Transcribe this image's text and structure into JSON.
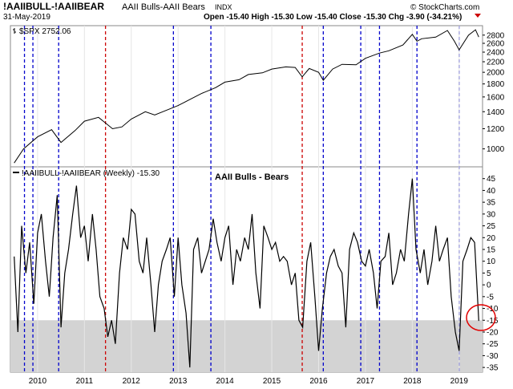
{
  "header": {
    "symbol": "!AAIIBULL-!AAIIBEAR",
    "description": "AAII Bulls-AAII Bears",
    "exchange": "INDX",
    "date": "31-May-2019",
    "ohlc": "Open -15.40   High -15.30   Low -15.40   Close -15.30   Chg -3.90 (-34.21%)",
    "credit": "© StockCharts.com",
    "arrow_icon": "down-triangle-icon"
  },
  "upper_panel": {
    "legend": "$SPX 2752.06",
    "legend_icon": "price-bars-icon"
  },
  "lower_panel": {
    "legend": "!AAIIBULL-!AAIIBEAR (Weekly) -15.30",
    "annotation": "AAII Bulls - Bears",
    "shaded_zone_label": ""
  },
  "colors": {
    "red_line": "#cc0000",
    "blue_line": "#0000cc",
    "shade": "#d3d3d3",
    "circle": "#e00000",
    "series": "#000000"
  },
  "chart_data": [
    {
      "type": "line",
      "name": "upper",
      "series": [
        {
          "name": "$SPX",
          "x": [
            2009.5,
            2009.7,
            2010.0,
            2010.3,
            2010.5,
            2010.8,
            2011.0,
            2011.3,
            2011.6,
            2011.8,
            2012.0,
            2012.3,
            2012.5,
            2012.8,
            2013.0,
            2013.3,
            2013.5,
            2013.8,
            2014.0,
            2014.3,
            2014.5,
            2014.8,
            2015.0,
            2015.3,
            2015.5,
            2015.65,
            2015.8,
            2016.0,
            2016.1,
            2016.3,
            2016.5,
            2016.8,
            2017.0,
            2017.3,
            2017.5,
            2017.8,
            2018.0,
            2018.1,
            2018.2,
            2018.5,
            2018.75,
            2018.9,
            2019.0,
            2019.2,
            2019.35,
            2019.42
          ],
          "values": [
            880,
            1000,
            1115,
            1190,
            1060,
            1180,
            1285,
            1330,
            1200,
            1220,
            1310,
            1400,
            1360,
            1430,
            1480,
            1580,
            1650,
            1740,
            1830,
            1870,
            1960,
            1990,
            2060,
            2100,
            2090,
            1920,
            2070,
            2000,
            1860,
            2060,
            2150,
            2140,
            2270,
            2380,
            2430,
            2560,
            2820,
            2650,
            2710,
            2750,
            2920,
            2650,
            2450,
            2800,
            2940,
            2752
          ]
        }
      ],
      "y_ticks": [
        1000,
        1200,
        1400,
        1600,
        1800,
        2000,
        2200,
        2400,
        2600,
        2800
      ],
      "y_scale": "log"
    },
    {
      "type": "line",
      "name": "lower",
      "series": [
        {
          "name": "AAII Bulls - Bears",
          "x": [
            2009.5,
            2009.58,
            2009.66,
            2009.75,
            2009.83,
            2009.92,
            2010.0,
            2010.08,
            2010.17,
            2010.25,
            2010.33,
            2010.42,
            2010.5,
            2010.58,
            2010.66,
            2010.75,
            2010.83,
            2010.92,
            2011.0,
            2011.08,
            2011.17,
            2011.25,
            2011.33,
            2011.42,
            2011.5,
            2011.58,
            2011.66,
            2011.75,
            2011.83,
            2011.92,
            2012.0,
            2012.08,
            2012.17,
            2012.25,
            2012.33,
            2012.42,
            2012.5,
            2012.58,
            2012.66,
            2012.75,
            2012.83,
            2012.92,
            2013.0,
            2013.08,
            2013.17,
            2013.25,
            2013.33,
            2013.42,
            2013.5,
            2013.58,
            2013.66,
            2013.75,
            2013.83,
            2013.92,
            2014.0,
            2014.08,
            2014.17,
            2014.25,
            2014.33,
            2014.42,
            2014.5,
            2014.58,
            2014.66,
            2014.75,
            2014.83,
            2014.92,
            2015.0,
            2015.08,
            2015.17,
            2015.25,
            2015.33,
            2015.42,
            2015.5,
            2015.58,
            2015.66,
            2015.75,
            2015.83,
            2015.92,
            2016.0,
            2016.08,
            2016.17,
            2016.25,
            2016.33,
            2016.42,
            2016.5,
            2016.58,
            2016.66,
            2016.75,
            2016.83,
            2016.92,
            2017.0,
            2017.08,
            2017.17,
            2017.25,
            2017.33,
            2017.42,
            2017.5,
            2017.58,
            2017.66,
            2017.75,
            2017.83,
            2017.92,
            2018.0,
            2018.08,
            2018.17,
            2018.25,
            2018.33,
            2018.42,
            2018.5,
            2018.58,
            2018.66,
            2018.75,
            2018.83,
            2018.92,
            2019.0,
            2019.08,
            2019.17,
            2019.25,
            2019.33,
            2019.42
          ],
          "values": [
            12,
            -20,
            25,
            5,
            18,
            -8,
            22,
            30,
            10,
            -5,
            20,
            38,
            -18,
            5,
            15,
            30,
            42,
            20,
            25,
            10,
            30,
            15,
            -5,
            -10,
            -22,
            -15,
            -25,
            5,
            20,
            15,
            32,
            30,
            10,
            5,
            20,
            0,
            -20,
            0,
            10,
            15,
            20,
            -5,
            20,
            0,
            -12,
            -35,
            15,
            20,
            5,
            10,
            15,
            28,
            18,
            10,
            20,
            25,
            0,
            15,
            10,
            20,
            15,
            30,
            5,
            -10,
            25,
            20,
            15,
            18,
            10,
            12,
            10,
            0,
            5,
            -15,
            -18,
            10,
            18,
            -5,
            -28,
            -10,
            5,
            12,
            15,
            8,
            5,
            -18,
            15,
            22,
            18,
            10,
            8,
            15,
            5,
            -10,
            10,
            12,
            22,
            0,
            5,
            15,
            10,
            30,
            45,
            15,
            5,
            15,
            0,
            10,
            25,
            10,
            15,
            20,
            -5,
            -20,
            -28,
            10,
            15,
            20,
            18,
            -15.3
          ]
        }
      ],
      "y_ticks": [
        45,
        40,
        35,
        30,
        25,
        20,
        15,
        10,
        5,
        0,
        -5,
        -10,
        -15,
        -20,
        -25,
        -30,
        -35
      ],
      "shaded_below": -15,
      "x_ticks": [
        "2010",
        "2011",
        "2012",
        "2013",
        "2014",
        "2015",
        "2016",
        "2017",
        "2018",
        "2019"
      ],
      "x_tick_values": [
        2010.0,
        2011.0,
        2012.0,
        2013.0,
        2014.0,
        2015.0,
        2016.0,
        2017.0,
        2018.0,
        2019.0
      ],
      "x_range": [
        2009.42,
        2019.5
      ],
      "red_lines": [
        2011.45,
        2015.65
      ],
      "blue_lines": [
        2009.72,
        2009.9,
        2010.45,
        2012.9,
        2013.7,
        2016.1,
        2016.9,
        2017.3,
        2018.1,
        2019.0
      ]
    }
  ]
}
